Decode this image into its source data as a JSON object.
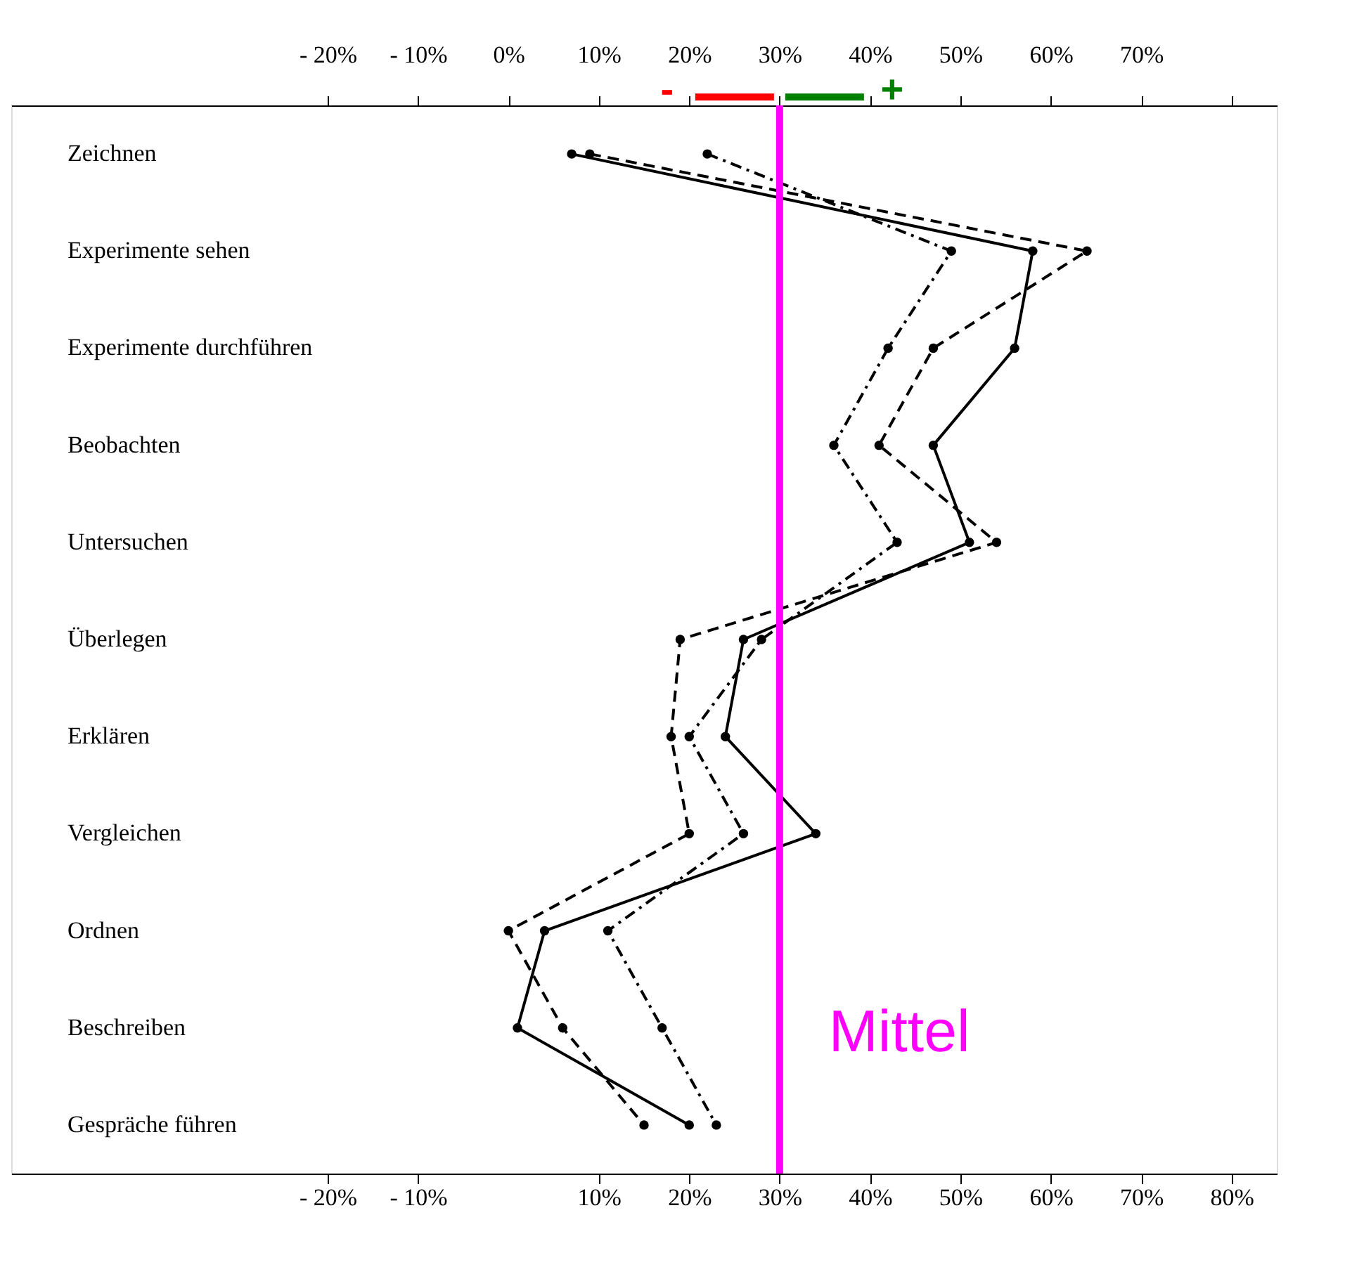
{
  "chart_data": {
    "type": "line",
    "categories": [
      "Zeichnen",
      "Experimente sehen",
      "Experimente durchführen",
      "Beobachten",
      "Untersuchen",
      "Überlegen",
      "Erklären",
      "Vergleichen",
      "Ordnen",
      "Beschreiben",
      "Gespräche führen"
    ],
    "orientation": "horizontal",
    "series": [
      {
        "color": "#000000",
        "line_style": "solid",
        "values": [
          7,
          58,
          56,
          47,
          51,
          26,
          24,
          34,
          4,
          1,
          20
        ]
      },
      {
        "color": "#000000",
        "line_style": "dashed",
        "values": [
          9,
          64,
          47,
          41,
          54,
          19,
          18,
          20,
          0,
          6,
          15
        ]
      },
      {
        "color": "#000000",
        "line_style": "dashdot",
        "values": [
          22,
          49,
          42,
          36,
          43,
          28,
          20,
          26,
          11,
          17,
          23
        ]
      }
    ],
    "marker": "circle",
    "xlim": [
      -55,
      85
    ],
    "xticks": [
      {
        "value": -20,
        "label": "- 20%"
      },
      {
        "value": -10,
        "label": "- 10%"
      },
      {
        "value": 10,
        "label": "10%"
      },
      {
        "value": 20,
        "label": "20%"
      },
      {
        "value": 30,
        "label": "30%"
      },
      {
        "value": 40,
        "label": "40%"
      },
      {
        "value": 50,
        "label": "50%"
      },
      {
        "value": 60,
        "label": "60%"
      },
      {
        "value": 70,
        "label": "70%"
      },
      {
        "value": 80,
        "label": "80%"
      }
    ],
    "x2lim": [
      -55,
      85
    ],
    "x2ticks": [
      {
        "value": -20,
        "label": "- 20%"
      },
      {
        "value": -10,
        "label": "- 10%"
      },
      {
        "value": 0,
        "label": "0%"
      },
      {
        "value": 10,
        "label": "10%"
      },
      {
        "value": 20,
        "label": "20%"
      },
      {
        "value": 30,
        "label": "30%"
      },
      {
        "value": 40,
        "label": "40%"
      },
      {
        "value": 50,
        "label": "50%"
      },
      {
        "value": 60,
        "label": "60%"
      },
      {
        "value": 70,
        "label": "70%"
      },
      {
        "value": 80,
        "label": null
      }
    ],
    "ref_lines": [
      {
        "axis": "x",
        "value": 30,
        "label": "Mittel",
        "color": "#ff00ff"
      }
    ],
    "annotations": [
      "-",
      "+"
    ],
    "grid": false
  }
}
